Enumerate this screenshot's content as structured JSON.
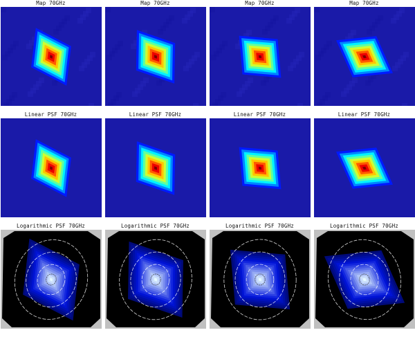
{
  "rows": [
    {
      "kind": "map",
      "panels": [
        {
          "title": "Map 70GHz"
        },
        {
          "title": "Map 70GHz"
        },
        {
          "title": "Map 70GHz"
        },
        {
          "title": "Map 70GHz"
        }
      ]
    },
    {
      "kind": "linear",
      "panels": [
        {
          "title": "Linear PSF 70GHz"
        },
        {
          "title": "Linear PSF 70GHz"
        },
        {
          "title": "Linear PSF 70GHz"
        },
        {
          "title": "Linear PSF 70GHz"
        }
      ]
    },
    {
      "kind": "log",
      "panels": [
        {
          "title": "Logarithmic PSF 70GHz"
        },
        {
          "title": "Logarithmic PSF 70GHz"
        },
        {
          "title": "Logarithmic PSF 70GHz"
        },
        {
          "title": "Logarithmic PSF 70GHz"
        }
      ]
    }
  ],
  "colors": {
    "jet_background": "#1a1aa8",
    "log_background": "#000000",
    "log_outside": "#c0c0c0",
    "contour": "#ffffff"
  }
}
